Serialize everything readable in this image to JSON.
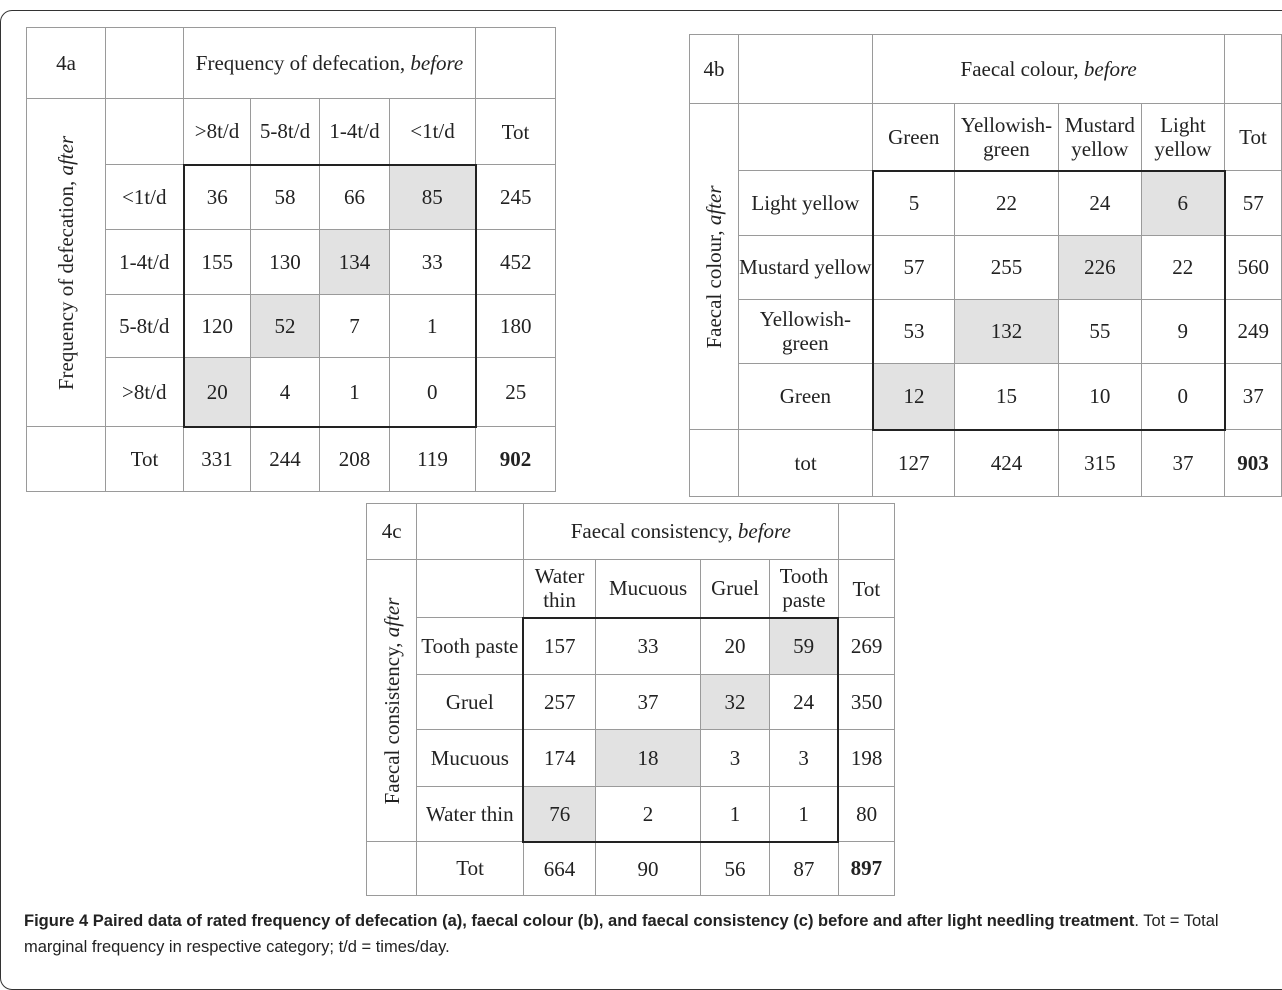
{
  "table_a": {
    "id_label": "4a",
    "header_before": "Frequency of defecation,",
    "header_before_em": "before",
    "side_after": "Frequency of defecation,",
    "side_after_em": "after",
    "columns": [
      ">8t/d",
      "5-8t/d",
      "1-4t/d",
      "<1t/d"
    ],
    "tot_label": "Tot",
    "rows": [
      {
        "label": "<1t/d",
        "cells": [
          "36",
          "58",
          "66",
          "85"
        ],
        "tot": "245",
        "hl": 3
      },
      {
        "label": "1-4t/d",
        "cells": [
          "155",
          "130",
          "134",
          "33"
        ],
        "tot": "452",
        "hl": 2
      },
      {
        "label": "5-8t/d",
        "cells": [
          "120",
          "52",
          "7",
          "1"
        ],
        "tot": "180",
        "hl": 1
      },
      {
        "label": ">8t/d",
        "cells": [
          "20",
          "4",
          "1",
          "0"
        ],
        "tot": "25",
        "hl": 0
      }
    ],
    "totals_row": {
      "label": "Tot",
      "cells": [
        "331",
        "244",
        "208",
        "119"
      ],
      "grand": "902"
    }
  },
  "table_b": {
    "id_label": "4b",
    "header_before": "Faecal colour,",
    "header_before_em": "before",
    "side_after": "Faecal colour,",
    "side_after_em": "after",
    "columns": [
      "Green",
      "Yellowish-green",
      "Mustard yellow",
      "Light yellow"
    ],
    "tot_label": "Tot",
    "rows": [
      {
        "label": "Light yellow",
        "cells": [
          "5",
          "22",
          "24",
          "6"
        ],
        "tot": "57",
        "hl": 3
      },
      {
        "label": "Mustard yellow",
        "cells": [
          "57",
          "255",
          "226",
          "22"
        ],
        "tot": "560",
        "hl": 2
      },
      {
        "label": "Yellowish-green",
        "cells": [
          "53",
          "132",
          "55",
          "9"
        ],
        "tot": "249",
        "hl": 1
      },
      {
        "label": "Green",
        "cells": [
          "12",
          "15",
          "10",
          "0"
        ],
        "tot": "37",
        "hl": 0
      }
    ],
    "totals_row": {
      "label": "tot",
      "cells": [
        "127",
        "424",
        "315",
        "37"
      ],
      "grand": "903"
    }
  },
  "table_c": {
    "id_label": "4c",
    "header_before": "Faecal consistency,",
    "header_before_em": "before",
    "side_after": "Faecal consistency,",
    "side_after_em": "after",
    "columns": [
      "Water thin",
      "Mucuous",
      "Gruel",
      "Tooth paste"
    ],
    "tot_label": "Tot",
    "rows": [
      {
        "label": "Tooth paste",
        "cells": [
          "157",
          "33",
          "20",
          "59"
        ],
        "tot": "269",
        "hl": 3
      },
      {
        "label": "Gruel",
        "cells": [
          "257",
          "37",
          "32",
          "24"
        ],
        "tot": "350",
        "hl": 2
      },
      {
        "label": "Mucuous",
        "cells": [
          "174",
          "18",
          "3",
          "3"
        ],
        "tot": "198",
        "hl": 1
      },
      {
        "label": "Water thin",
        "cells": [
          "76",
          "2",
          "1",
          "1"
        ],
        "tot": "80",
        "hl": 0
      }
    ],
    "totals_row": {
      "label": "Tot",
      "cells": [
        "664",
        "90",
        "56",
        "87"
      ],
      "grand": "897"
    }
  },
  "caption": {
    "bold": "Figure 4 Paired data of rated frequency of defecation (a), faecal colour (b), and faecal consistency (c) before and after light needling treatment",
    "rest": ". Tot = Total marginal frequency in respective category; t/d = times/day."
  },
  "colors": {
    "highlight": "#e2e2e2",
    "border": "#9a9a9a",
    "thick_border": "#222222"
  }
}
